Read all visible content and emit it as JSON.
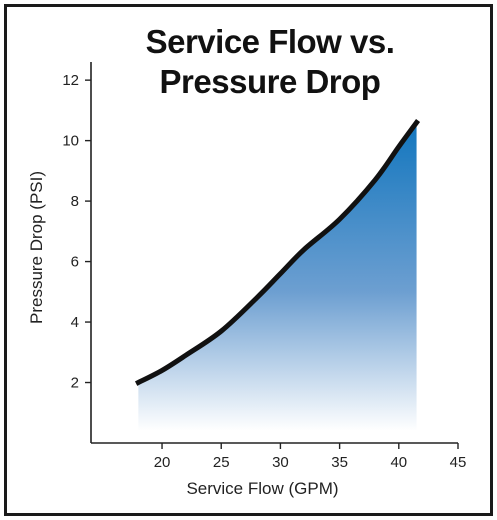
{
  "chart_data": {
    "type": "area",
    "title_lines": [
      "Service Flow vs.",
      "Pressure Drop"
    ],
    "xlabel": "Service Flow (GPM)",
    "ylabel": "Pressure Drop (PSI)",
    "xlim": [
      14,
      45
    ],
    "ylim": [
      0,
      12.6
    ],
    "xticks": [
      20,
      25,
      30,
      35,
      40,
      45
    ],
    "yticks": [
      2,
      4,
      6,
      8,
      10,
      12
    ],
    "grid": false,
    "series": [
      {
        "x": [
          18,
          20,
          22,
          25,
          28,
          30,
          32,
          35,
          38,
          40,
          41.5
        ],
        "y": [
          2.0,
          2.4,
          2.9,
          3.7,
          4.8,
          5.6,
          6.4,
          7.4,
          8.7,
          9.8,
          10.6
        ]
      }
    ],
    "colors": {
      "line": "#111111",
      "fill_top": "#1276be",
      "fill_bottom": "#ffffff",
      "axis": "#222222"
    }
  }
}
